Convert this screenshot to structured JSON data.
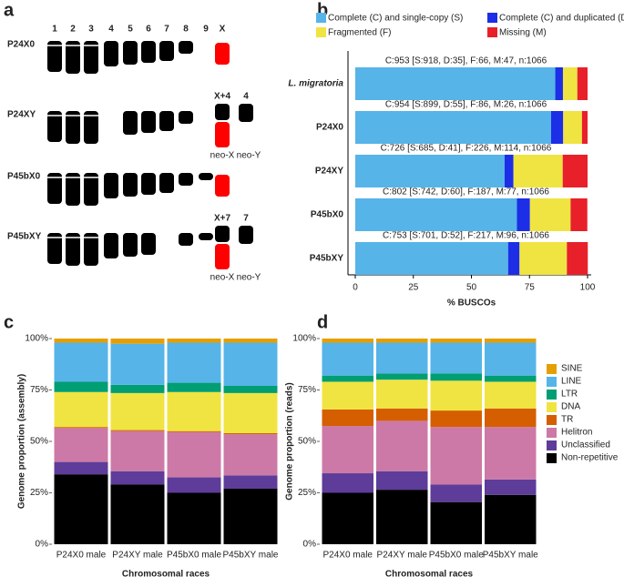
{
  "panel_labels": [
    "a",
    "b",
    "c",
    "d"
  ],
  "karyotype": {
    "column_labels": [
      "1",
      "2",
      "3",
      "4",
      "5",
      "6",
      "7",
      "8",
      "9",
      "X"
    ],
    "rows": [
      {
        "label": "P24X0"
      },
      {
        "label": "P24XY",
        "fusion_label": "X+4",
        "neo_y_label": "4",
        "neo_x": "neo-X",
        "neo_y": "neo-Y"
      },
      {
        "label": "P45bX0"
      },
      {
        "label": "P45bXY",
        "fusion_label": "X+7",
        "neo_y_label": "7",
        "neo_x": "neo-X",
        "neo_y": "neo-Y"
      }
    ]
  },
  "chart_data": [
    {
      "type": "bar",
      "orientation": "horizontal",
      "stacked": true,
      "categories": [
        "L. migratoria",
        "P24X0",
        "P24XY",
        "P45bX0",
        "P45bXY"
      ],
      "series": [
        {
          "name": "Complete (C) and single-copy (S)",
          "color": "#56b4e9",
          "values": [
            86.1,
            84.3,
            64.3,
            69.6,
            65.8
          ]
        },
        {
          "name": "Complete (C) and duplicated (D)",
          "color": "#1c2ee6",
          "values": [
            3.3,
            5.2,
            3.8,
            5.6,
            4.9
          ]
        },
        {
          "name": "Fragmented (F)",
          "color": "#f0e442",
          "values": [
            6.2,
            8.1,
            21.2,
            17.5,
            20.4
          ]
        },
        {
          "name": "Missing (M)",
          "color": "#e8202a",
          "values": [
            4.4,
            2.4,
            10.7,
            7.2,
            9.0
          ]
        }
      ],
      "annotations": [
        "C:953 [S:918, D:35], F:66, M:47, n:1066",
        "C:954 [S:899, D:55], F:86, M:26, n:1066",
        "C:726 [S:685, D:41], F:226, M:114, n:1066",
        "C:802 [S:742, D:60], F:187, M:77, n:1066",
        "C:753 [S:701, D:52], F:217, M:96, n:1066"
      ],
      "xlim": [
        0,
        100
      ],
      "xticks": [
        0,
        25,
        50,
        75,
        100
      ],
      "xlabel": "% BUSCOs",
      "legend": "top"
    },
    {
      "type": "bar",
      "orientation": "vertical",
      "stacked": true,
      "categories": [
        "P24X0 male",
        "P24XY male",
        "P45bX0 male",
        "P45bXY male"
      ],
      "series": [
        {
          "color": "#000000",
          "values": [
            34,
            29,
            25,
            27
          ]
        },
        {
          "color": "#5e3c99",
          "values": [
            6,
            6.5,
            7.5,
            6.5
          ]
        },
        {
          "color": "#cc79a7",
          "values": [
            16.5,
            19.5,
            22,
            20
          ]
        },
        {
          "color": "#d55e00",
          "values": [
            0.5,
            0.5,
            0.5,
            0.5
          ]
        },
        {
          "color": "#f0e442",
          "values": [
            17,
            18,
            19,
            19.5
          ]
        },
        {
          "color": "#009e73",
          "values": [
            5,
            4,
            4.5,
            3.5
          ]
        },
        {
          "color": "#56b4e9",
          "values": [
            19,
            20,
            19.5,
            21
          ]
        },
        {
          "color": "#e69f00",
          "values": [
            2,
            2.5,
            2,
            2
          ]
        }
      ],
      "ylim": [
        0,
        100
      ],
      "yticks": [
        {
          "value": 0,
          "label": "0%"
        },
        {
          "value": 25,
          "label": "25%"
        },
        {
          "value": 50,
          "label": "50%"
        },
        {
          "value": 75,
          "label": "75%"
        },
        {
          "value": 100,
          "label": "100%"
        }
      ],
      "ylabel": "Genome proportion (assembly)",
      "xlabel": "Chromosomal races"
    },
    {
      "type": "bar",
      "orientation": "vertical",
      "stacked": true,
      "categories": [
        "P24X0 male",
        "P24XY male",
        "P45bX0 male",
        "P45bXY male"
      ],
      "series": [
        {
          "name": "Non-repetitive",
          "color": "#000000",
          "values": [
            25,
            26.5,
            20.5,
            24
          ]
        },
        {
          "name": "Unclassified",
          "color": "#5e3c99",
          "values": [
            9.5,
            9,
            8.5,
            7.5
          ]
        },
        {
          "name": "Helitron",
          "color": "#cc79a7",
          "values": [
            23,
            24.5,
            28,
            25.5
          ]
        },
        {
          "name": "TR",
          "color": "#d55e00",
          "values": [
            8,
            6,
            8,
            9
          ]
        },
        {
          "name": "DNA",
          "color": "#f0e442",
          "values": [
            13.5,
            14,
            14.5,
            13
          ]
        },
        {
          "name": "LTR",
          "color": "#009e73",
          "values": [
            3,
            3,
            3.5,
            3
          ]
        },
        {
          "name": "LINE",
          "color": "#56b4e9",
          "values": [
            16,
            15,
            15,
            16
          ]
        },
        {
          "name": "SINE",
          "color": "#e69f00",
          "values": [
            2,
            2,
            2,
            2
          ]
        }
      ],
      "ylim": [
        0,
        100
      ],
      "yticks": [
        {
          "value": 0,
          "label": "0%"
        },
        {
          "value": 25,
          "label": "25%"
        },
        {
          "value": 50,
          "label": "50%"
        },
        {
          "value": 75,
          "label": "75%"
        },
        {
          "value": 100,
          "label": "100%"
        }
      ],
      "ylabel": "Genome proportion (reads)",
      "xlabel": "Chromosomal races",
      "legend": "right"
    }
  ]
}
